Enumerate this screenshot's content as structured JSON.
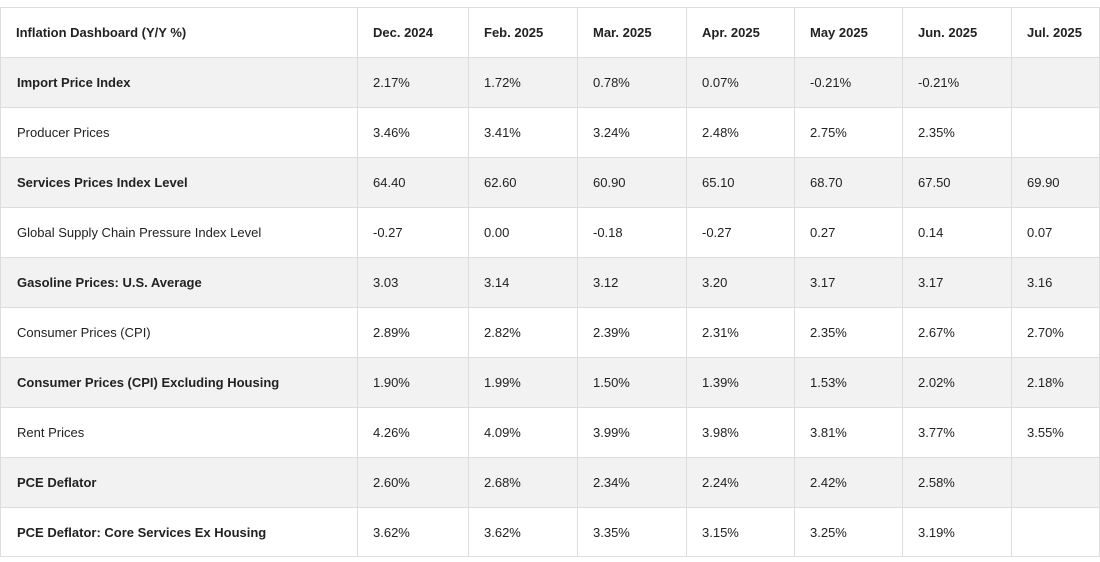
{
  "table": {
    "headers": [
      "Inflation Dashboard (Y/Y %)",
      "Dec. 2024",
      "Feb. 2025",
      "Mar. 2025",
      "Apr. 2025",
      "May 2025",
      "Jun. 2025",
      "Jul. 2025"
    ],
    "rows": [
      {
        "label": "Import Price Index",
        "values": [
          "2.17%",
          "1.72%",
          "0.78%",
          "0.07%",
          "-0.21%",
          "-0.21%",
          ""
        ]
      },
      {
        "label": "Producer Prices",
        "values": [
          "3.46%",
          "3.41%",
          "3.24%",
          "2.48%",
          "2.75%",
          "2.35%",
          ""
        ]
      },
      {
        "label": "Services Prices Index Level",
        "values": [
          "64.40",
          "62.60",
          "60.90",
          "65.10",
          "68.70",
          "67.50",
          "69.90"
        ]
      },
      {
        "label": "Global Supply Chain Pressure Index Level",
        "values": [
          "-0.27",
          "0.00",
          "-0.18",
          "-0.27",
          "0.27",
          "0.14",
          "0.07"
        ]
      },
      {
        "label": "Gasoline Prices: U.S. Average",
        "values": [
          "3.03",
          "3.14",
          "3.12",
          "3.20",
          "3.17",
          "3.17",
          "3.16"
        ]
      },
      {
        "label": "Consumer Prices (CPI)",
        "values": [
          "2.89%",
          "2.82%",
          "2.39%",
          "2.31%",
          "2.35%",
          "2.67%",
          "2.70%"
        ]
      },
      {
        "label": "Consumer Prices (CPI) Excluding Housing",
        "values": [
          "1.90%",
          "1.99%",
          "1.50%",
          "1.39%",
          "1.53%",
          "2.02%",
          "2.18%"
        ]
      },
      {
        "label": "Rent Prices",
        "values": [
          "4.26%",
          "4.09%",
          "3.99%",
          "3.98%",
          "3.81%",
          "3.77%",
          "3.55%"
        ]
      },
      {
        "label": "PCE Deflator",
        "values": [
          "2.60%",
          "2.68%",
          "2.34%",
          "2.24%",
          "2.42%",
          "2.58%",
          ""
        ]
      },
      {
        "label": "PCE Deflator: Core Services Ex Housing",
        "values": [
          "3.62%",
          "3.62%",
          "3.35%",
          "3.15%",
          "3.25%",
          "3.19%",
          ""
        ]
      }
    ]
  }
}
